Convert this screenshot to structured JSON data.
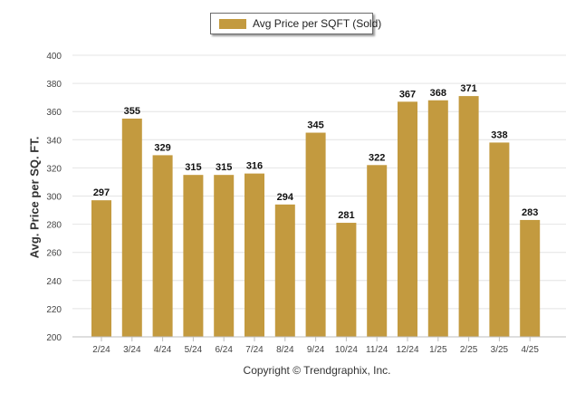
{
  "legend": {
    "label": "Avg Price per SQFT (Sold)"
  },
  "footer": {
    "copyright": "Copyright © Trendgraphix, Inc."
  },
  "colors": {
    "bar": "#C39A3F",
    "grid": "#e4e4e4",
    "axis": "#bdbdbd"
  },
  "chart_data": {
    "type": "bar",
    "title": "",
    "xlabel": "",
    "ylabel": "Avg. Price per SQ. FT.",
    "ylim": [
      200,
      400
    ],
    "yticks": [
      200,
      220,
      240,
      260,
      280,
      300,
      320,
      340,
      360,
      380,
      400
    ],
    "grid": true,
    "legend_position": "top-center",
    "categories": [
      "2/24",
      "3/24",
      "4/24",
      "5/24",
      "6/24",
      "7/24",
      "8/24",
      "9/24",
      "10/24",
      "11/24",
      "12/24",
      "1/25",
      "2/25",
      "3/25",
      "4/25"
    ],
    "series": [
      {
        "name": "Avg Price per SQFT (Sold)",
        "values": [
          297,
          355,
          329,
          315,
          315,
          316,
          294,
          345,
          281,
          322,
          367,
          368,
          371,
          338,
          283
        ]
      }
    ]
  }
}
